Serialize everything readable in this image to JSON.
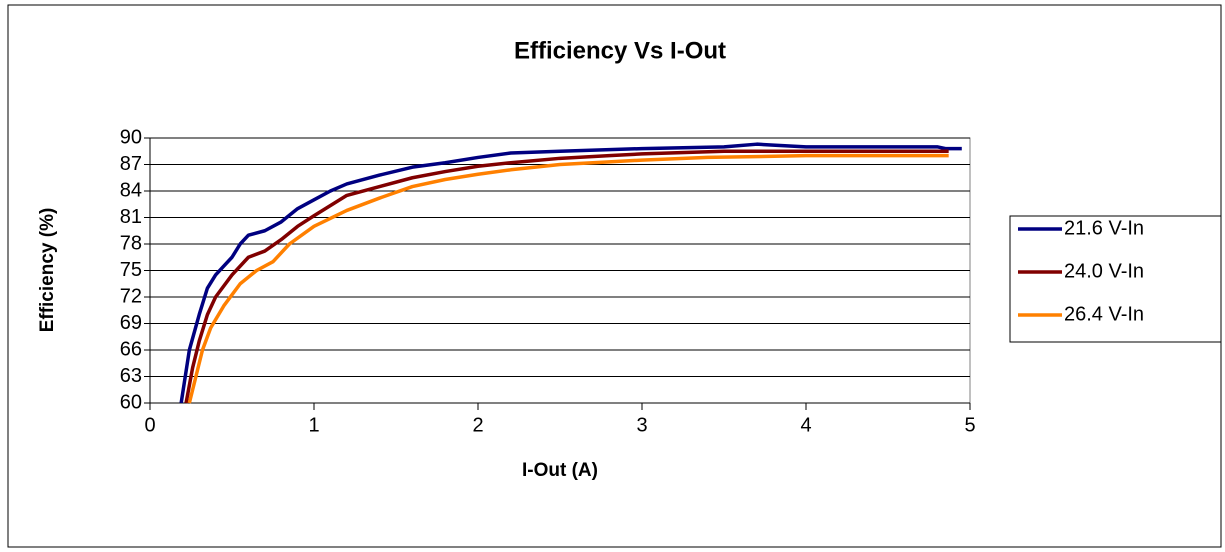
{
  "chart_data": {
    "type": "line",
    "title": "Efficiency Vs I-Out",
    "xlabel": "I-Out (A)",
    "ylabel": "Efficiency (%)",
    "xlim": [
      0,
      5
    ],
    "xticks": [
      0,
      1,
      2,
      3,
      4,
      5
    ],
    "ylim": [
      60,
      90
    ],
    "yticks": [
      60,
      63,
      66,
      69,
      72,
      75,
      78,
      81,
      84,
      87,
      90
    ],
    "grid": true,
    "legend": "right",
    "series": [
      {
        "name": "21.6 V-In",
        "color": "#000080",
        "x": [
          0.19,
          0.24,
          0.3,
          0.35,
          0.4,
          0.45,
          0.5,
          0.55,
          0.6,
          0.7,
          0.8,
          0.9,
          1.0,
          1.1,
          1.2,
          1.4,
          1.6,
          1.8,
          2.0,
          2.2,
          2.5,
          3.0,
          3.5,
          3.7,
          3.8,
          4.0,
          4.5,
          4.8,
          4.85,
          4.95
        ],
        "values": [
          60,
          66,
          70,
          73,
          74.5,
          75.5,
          76.5,
          78,
          79,
          79.5,
          80.5,
          82,
          83,
          84,
          84.8,
          85.8,
          86.7,
          87.2,
          87.8,
          88.3,
          88.5,
          88.8,
          89,
          89.3,
          89.2,
          89,
          89,
          89,
          88.8,
          88.8
        ]
      },
      {
        "name": "24.0 V-In",
        "color": "#800000",
        "x": [
          0.22,
          0.26,
          0.3,
          0.35,
          0.4,
          0.5,
          0.6,
          0.7,
          0.8,
          0.9,
          1.0,
          1.2,
          1.4,
          1.6,
          1.8,
          2.0,
          2.2,
          2.5,
          2.8,
          3.0,
          3.5,
          4.0,
          4.87
        ],
        "values": [
          60,
          64,
          67,
          70,
          72,
          74.5,
          76.5,
          77.2,
          78.5,
          80,
          81.2,
          83.5,
          84.5,
          85.5,
          86.2,
          86.8,
          87.2,
          87.7,
          88,
          88.2,
          88.5,
          88.5,
          88.5
        ]
      },
      {
        "name": "26.4 V-In",
        "color": "#ff8000",
        "x": [
          0.24,
          0.28,
          0.32,
          0.37,
          0.45,
          0.55,
          0.65,
          0.75,
          0.85,
          1.0,
          1.2,
          1.4,
          1.6,
          1.8,
          2.0,
          2.2,
          2.5,
          2.8,
          3.0,
          3.4,
          4.0,
          4.87
        ],
        "values": [
          60,
          63,
          66,
          68.5,
          71,
          73.5,
          75,
          76,
          78,
          80,
          81.8,
          83.2,
          84.5,
          85.3,
          85.9,
          86.4,
          87,
          87.3,
          87.5,
          87.8,
          88,
          88
        ]
      }
    ]
  }
}
